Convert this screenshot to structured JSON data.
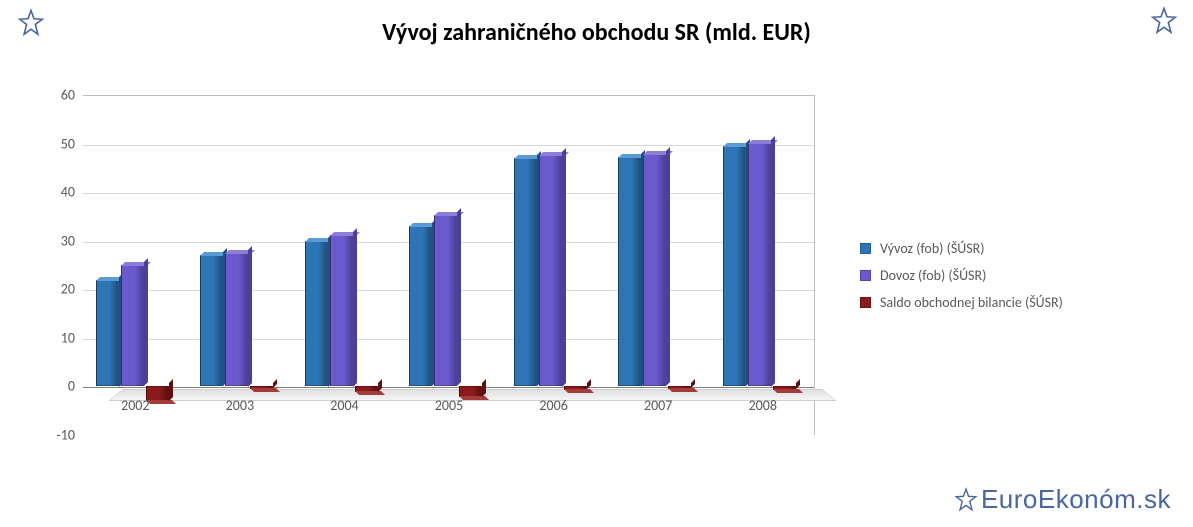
{
  "title": "Vývoj zahraničného obchodu SR (mld. EUR)",
  "title_fontsize": 24,
  "chart": {
    "type": "bar",
    "categories": [
      "2002",
      "2003",
      "2004",
      "2005",
      "2006",
      "2007",
      "2008"
    ],
    "series": [
      {
        "name": "Vývoz (fob) (ŠÚSR)",
        "color": "#2e75b6",
        "top": "#5b9bd5",
        "side": "#1f4e79",
        "values": [
          22,
          27,
          30,
          33,
          47,
          47.3,
          49.5
        ]
      },
      {
        "name": "Dovoz (fob) (ŠÚSR)",
        "color": "#6a5acd",
        "top": "#8b7dd8",
        "side": "#4b3f99",
        "values": [
          25,
          27.5,
          31.2,
          35.2,
          47.7,
          47.8,
          50.2
        ]
      },
      {
        "name": "Saldo obchodnej bilancie (ŠÚSR)",
        "color": "#8b1a1a",
        "top": "#a53c3c",
        "side": "#5e0f0f",
        "values": [
          -3,
          -0.5,
          -1.2,
          -2.2,
          -0.7,
          -0.5,
          -0.7
        ]
      }
    ],
    "ylim": [
      -10,
      60
    ],
    "ytick_step": 10,
    "grid_color": "#d9d9d9",
    "axis_color": "#bfbfbf",
    "background_color": "#ffffff",
    "label_fontsize": 14,
    "bar_width_ratio": 0.22,
    "group_padding_ratio": 0.12
  },
  "legend_fontsize": 14,
  "watermark": {
    "text1": "Euro",
    "text2": "Ekonóm",
    "text3": ".sk",
    "color": "#4a66a0",
    "fontsize": 26
  },
  "stars": {
    "color": "#4a66a0",
    "size": 28
  }
}
